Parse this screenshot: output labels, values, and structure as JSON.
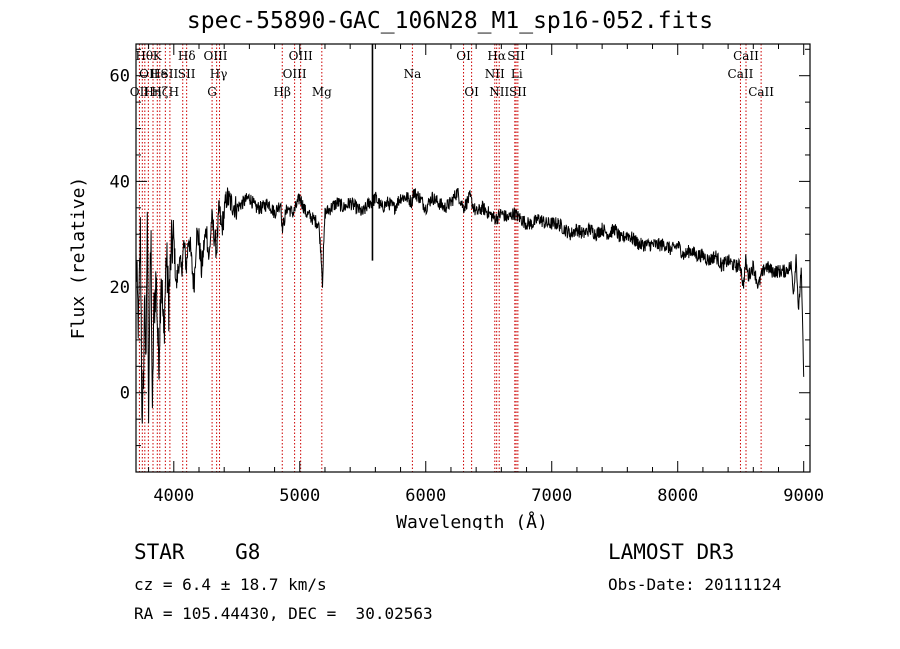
{
  "chart_data": {
    "type": "line",
    "title": "spec-55890-GAC_106N28_M1_sp16-052.fits",
    "xlabel": "Wavelength (Å)",
    "ylabel": "Flux (relative)",
    "xlim": [
      3700,
      9050
    ],
    "ylim": [
      -15,
      66
    ],
    "xticks": [
      4000,
      5000,
      6000,
      7000,
      8000,
      9000
    ],
    "yticks": [
      0,
      20,
      40,
      60
    ],
    "series": [
      {
        "name": "flux",
        "x": [
          3700,
          3720,
          3735,
          3750,
          3760,
          3770,
          3780,
          3790,
          3800,
          3810,
          3820,
          3830,
          3840,
          3860,
          3880,
          3900,
          3920,
          3940,
          3960,
          3980,
          4000,
          4020,
          4040,
          4060,
          4080,
          4100,
          4120,
          4140,
          4160,
          4180,
          4200,
          4220,
          4240,
          4260,
          4280,
          4300,
          4320,
          4340,
          4360,
          4380,
          4400,
          4420,
          4450,
          4500,
          4550,
          4600,
          4650,
          4700,
          4750,
          4800,
          4850,
          4860,
          4900,
          4950,
          5000,
          5050,
          5100,
          5150,
          5170,
          5180,
          5200,
          5250,
          5300,
          5350,
          5400,
          5450,
          5500,
          5550,
          5577,
          5600,
          5650,
          5700,
          5750,
          5800,
          5850,
          5890,
          5900,
          5950,
          6000,
          6050,
          6100,
          6150,
          6200,
          6250,
          6300,
          6350,
          6400,
          6450,
          6500,
          6550,
          6563,
          6600,
          6650,
          6700,
          6750,
          6800,
          6850,
          6900,
          6950,
          7000,
          7050,
          7100,
          7150,
          7200,
          7250,
          7300,
          7350,
          7400,
          7450,
          7500,
          7550,
          7600,
          7650,
          7700,
          7750,
          7800,
          7850,
          7900,
          7950,
          8000,
          8050,
          8100,
          8150,
          8200,
          8250,
          8300,
          8350,
          8400,
          8450,
          8500,
          8520,
          8540,
          8560,
          8600,
          8640,
          8662,
          8700,
          8750,
          8800,
          8850,
          8900,
          8920,
          8940,
          8960,
          8980,
          9000
        ],
        "y": [
          25,
          12,
          30,
          -9,
          5,
          20,
          3,
          35,
          -2,
          18,
          28,
          -7,
          14,
          22,
          5,
          24,
          10,
          26,
          17,
          27,
          29,
          20,
          25,
          23,
          28,
          24,
          30,
          25,
          20,
          30,
          29,
          23,
          28,
          31,
          25,
          33,
          30,
          27,
          35,
          31,
          34,
          37,
          36,
          35,
          36,
          37,
          35,
          35,
          36,
          34,
          36,
          31,
          35,
          34,
          37,
          34,
          33,
          32,
          26,
          21,
          34,
          35,
          36,
          35,
          36,
          35,
          34,
          36,
          36,
          37,
          35,
          36,
          35,
          37,
          37,
          36,
          38,
          37,
          35,
          37,
          36,
          35,
          36,
          38,
          35,
          37,
          34,
          35,
          34,
          33,
          33,
          34,
          33,
          34,
          33,
          32,
          32,
          33,
          32,
          32,
          32,
          31,
          30,
          31,
          30,
          31,
          30,
          31,
          30,
          31,
          29,
          30,
          29,
          28,
          28,
          28,
          28,
          28,
          27,
          28,
          26,
          27,
          26,
          26,
          25,
          26,
          24,
          25,
          24,
          24,
          20,
          25,
          22,
          24,
          20,
          22,
          24,
          23,
          23,
          23,
          24,
          19,
          26,
          15,
          24,
          3
        ]
      }
    ],
    "spike": {
      "x": 5577,
      "ytop": 66,
      "ybottom": 25
    },
    "lines": [
      {
        "x": 3727,
        "label": "OII",
        "row": 2,
        "dx": 0
      },
      {
        "x": 3750,
        "label": "Hθ",
        "row": 0,
        "dx": 2
      },
      {
        "x": 3770,
        "label": "OII",
        "row": 1,
        "dx": 4
      },
      {
        "x": 3798,
        "label": "Hη",
        "row": 2,
        "dx": 4
      },
      {
        "x": 3835,
        "label": "He",
        "row": 1,
        "dx": 6
      },
      {
        "x": 3869,
        "label": "K",
        "row": 0,
        "dx": 0
      },
      {
        "x": 3889,
        "label": "Hζ",
        "row": 2,
        "dx": 0
      },
      {
        "x": 3933,
        "label": "SII",
        "row": 1,
        "dx": 4
      },
      {
        "x": 3969,
        "label": "H",
        "row": 2,
        "dx": 4
      },
      {
        "x": 4071,
        "label": "Hδ",
        "row": 0,
        "dx": 4
      },
      {
        "x": 4102,
        "label": "SII",
        "row": 1,
        "dx": 0
      },
      {
        "x": 4304,
        "label": "G",
        "row": 2,
        "dx": 0
      },
      {
        "x": 4340,
        "label": "Hγ",
        "row": 1,
        "dx": 2
      },
      {
        "x": 4363,
        "label": "OIII",
        "row": 0,
        "dx": -4
      },
      {
        "x": 4861,
        "label": "Hβ",
        "row": 2,
        "dx": 0
      },
      {
        "x": 4959,
        "label": "OIII",
        "row": 1,
        "dx": 0
      },
      {
        "x": 5007,
        "label": "OIII",
        "row": 0,
        "dx": 0
      },
      {
        "x": 5175,
        "label": "Mg",
        "row": 2,
        "dx": 0
      },
      {
        "x": 5894,
        "label": "Na",
        "row": 1,
        "dx": 0
      },
      {
        "x": 6300,
        "label": "OI",
        "row": 0,
        "dx": 0
      },
      {
        "x": 6364,
        "label": "OI",
        "row": 2,
        "dx": 0
      },
      {
        "x": 6548,
        "label": "NII",
        "row": 1,
        "dx": 0
      },
      {
        "x": 6563,
        "label": "Hα",
        "row": 0,
        "dx": 0
      },
      {
        "x": 6583,
        "label": "NII",
        "row": 2,
        "dx": 0
      },
      {
        "x": 6707,
        "label": "Li",
        "row": 1,
        "dx": 2
      },
      {
        "x": 6717,
        "label": "SII",
        "row": 0,
        "dx": 0
      },
      {
        "x": 6731,
        "label": "SII",
        "row": 2,
        "dx": 0
      },
      {
        "x": 8498,
        "label": "CaII",
        "row": 1,
        "dx": 0
      },
      {
        "x": 8542,
        "label": "CaII",
        "row": 0,
        "dx": 0
      },
      {
        "x": 8662,
        "label": "CaII",
        "row": 2,
        "dx": 0
      }
    ]
  },
  "info": {
    "class": "STAR    G8",
    "cz": "cz = 6.4 ± 18.7 km/s",
    "radec": "RA = 105.44430, DEC =  30.02563",
    "survey": "LAMOST DR3",
    "obs_date": "Obs-Date: 20111124"
  },
  "colors": {
    "axis": "#000000",
    "trace": "#000000",
    "line_marker": "#cc0000"
  }
}
